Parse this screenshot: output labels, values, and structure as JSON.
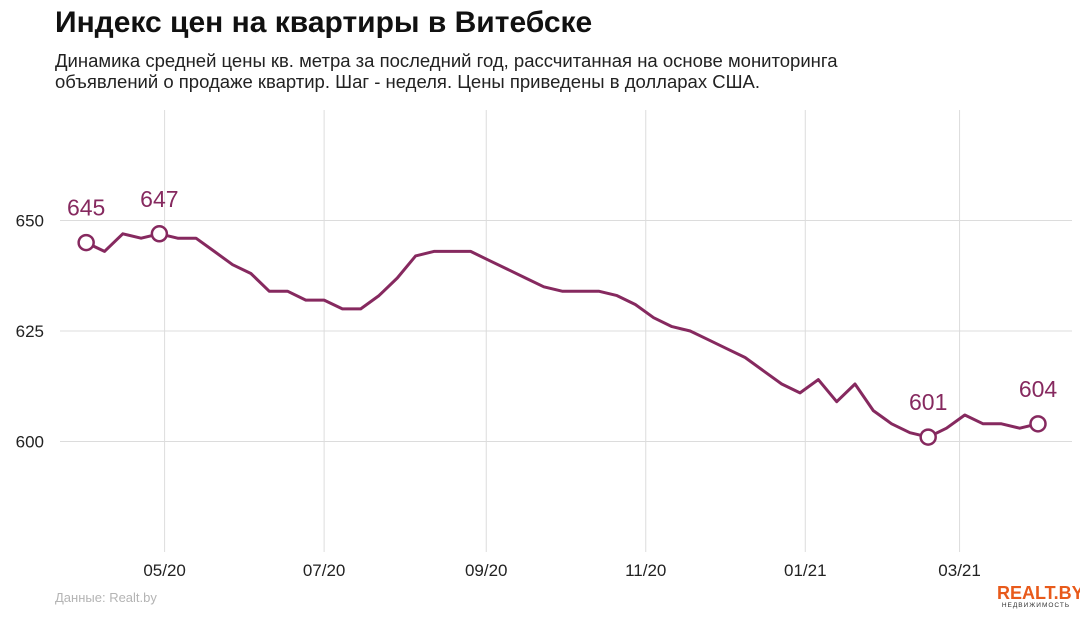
{
  "header": {
    "title": "Индекс цен на квартиры в Витебске",
    "subtitle_lines": [
      "Динамика средней цены кв. метра за последний год, рассчитанная на основе мониторинга",
      "объявлений о продаже квартир. Шаг - неделя. Цены приведены в долларах США."
    ]
  },
  "footer": {
    "source": "Данные: Realt.by",
    "logo_main": "REALT.BY",
    "logo_sub": "НЕДВИЖИМОСТЬ"
  },
  "colors": {
    "line": "#86295f",
    "grid": "#dcdcdc",
    "tick_text": "#222222"
  },
  "chart_data": {
    "type": "line",
    "title": "Индекс цен на квартиры в Витебске",
    "x": [
      "2020-04-01",
      "2020-04-08",
      "2020-04-15",
      "2020-04-22",
      "2020-04-29",
      "2020-05-06",
      "2020-05-13",
      "2020-05-20",
      "2020-05-27",
      "2020-06-03",
      "2020-06-10",
      "2020-06-17",
      "2020-06-24",
      "2020-07-01",
      "2020-07-08",
      "2020-07-15",
      "2020-07-22",
      "2020-07-29",
      "2020-08-05",
      "2020-08-12",
      "2020-08-19",
      "2020-08-26",
      "2020-09-02",
      "2020-09-09",
      "2020-09-16",
      "2020-09-23",
      "2020-09-30",
      "2020-10-07",
      "2020-10-14",
      "2020-10-21",
      "2020-10-28",
      "2020-11-04",
      "2020-11-11",
      "2020-11-18",
      "2020-11-25",
      "2020-12-02",
      "2020-12-09",
      "2020-12-16",
      "2020-12-23",
      "2020-12-30",
      "2021-01-06",
      "2021-01-13",
      "2021-01-20",
      "2021-01-27",
      "2021-02-03",
      "2021-02-10",
      "2021-02-17",
      "2021-02-24",
      "2021-03-03",
      "2021-03-10",
      "2021-03-17",
      "2021-03-24",
      "2021-03-31"
    ],
    "series": [
      {
        "values": [
          645,
          643,
          647,
          646,
          647,
          646,
          646,
          643,
          640,
          638,
          634,
          634,
          632,
          632,
          630,
          630,
          633,
          637,
          642,
          643,
          643,
          643,
          641,
          639,
          637,
          635,
          634,
          634,
          634,
          633,
          631,
          628,
          626,
          625,
          623,
          621,
          619,
          616,
          613,
          611,
          614,
          609,
          613,
          607,
          604,
          602,
          601,
          603,
          606,
          604,
          604,
          603,
          604
        ]
      }
    ],
    "highlights": [
      {
        "index": 0,
        "label": "645"
      },
      {
        "index": 4,
        "label": "647"
      },
      {
        "index": 46,
        "label": "601"
      },
      {
        "index": 52,
        "label": "604"
      }
    ],
    "x_ticks": [
      {
        "date": "2020-05-01",
        "label": "05/20"
      },
      {
        "date": "2020-07-01",
        "label": "07/20"
      },
      {
        "date": "2020-09-01",
        "label": "09/20"
      },
      {
        "date": "2020-11-01",
        "label": "11/20"
      },
      {
        "date": "2021-01-01",
        "label": "01/21"
      },
      {
        "date": "2021-03-01",
        "label": "03/21"
      }
    ],
    "y_ticks": [
      600,
      625,
      650
    ],
    "ylim": [
      575,
      675
    ],
    "xlim": [
      "2020-03-22",
      "2021-04-13"
    ],
    "grid": true,
    "legend": "none"
  }
}
